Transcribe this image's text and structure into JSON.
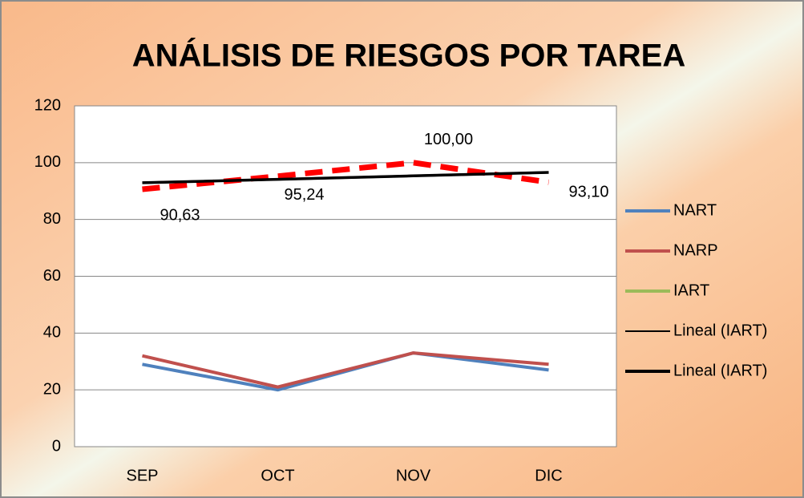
{
  "chart_data": {
    "type": "line",
    "title": "ANÁLISIS DE RIESGOS POR TAREA",
    "categories": [
      "SEP",
      "OCT",
      "NOV",
      "DIC"
    ],
    "series": [
      {
        "name": "NART",
        "color": "#4f81bd",
        "values": [
          29,
          20,
          33,
          27
        ]
      },
      {
        "name": "NARP",
        "color": "#c0504d",
        "values": [
          32,
          21,
          33,
          29
        ]
      },
      {
        "name": "IART",
        "color": "#9bbb59",
        "line_color": "#ff0000",
        "dashed": true,
        "values": [
          90.63,
          95.24,
          100,
          93.1
        ],
        "value_labels": [
          "90,63",
          "95,24",
          "100,00",
          "93,10"
        ]
      },
      {
        "name": "Lineal (IART)",
        "color": "#000000",
        "values": [
          92.92,
          94.13,
          95.35,
          96.57
        ]
      },
      {
        "name": "Lineal (IART)",
        "color": "#000000",
        "values": [
          92.92,
          94.13,
          95.35,
          96.57
        ]
      }
    ],
    "ylim": [
      0,
      120
    ],
    "yticks": [
      0,
      20,
      40,
      60,
      80,
      100,
      120
    ],
    "grid": true,
    "legend": "right"
  }
}
